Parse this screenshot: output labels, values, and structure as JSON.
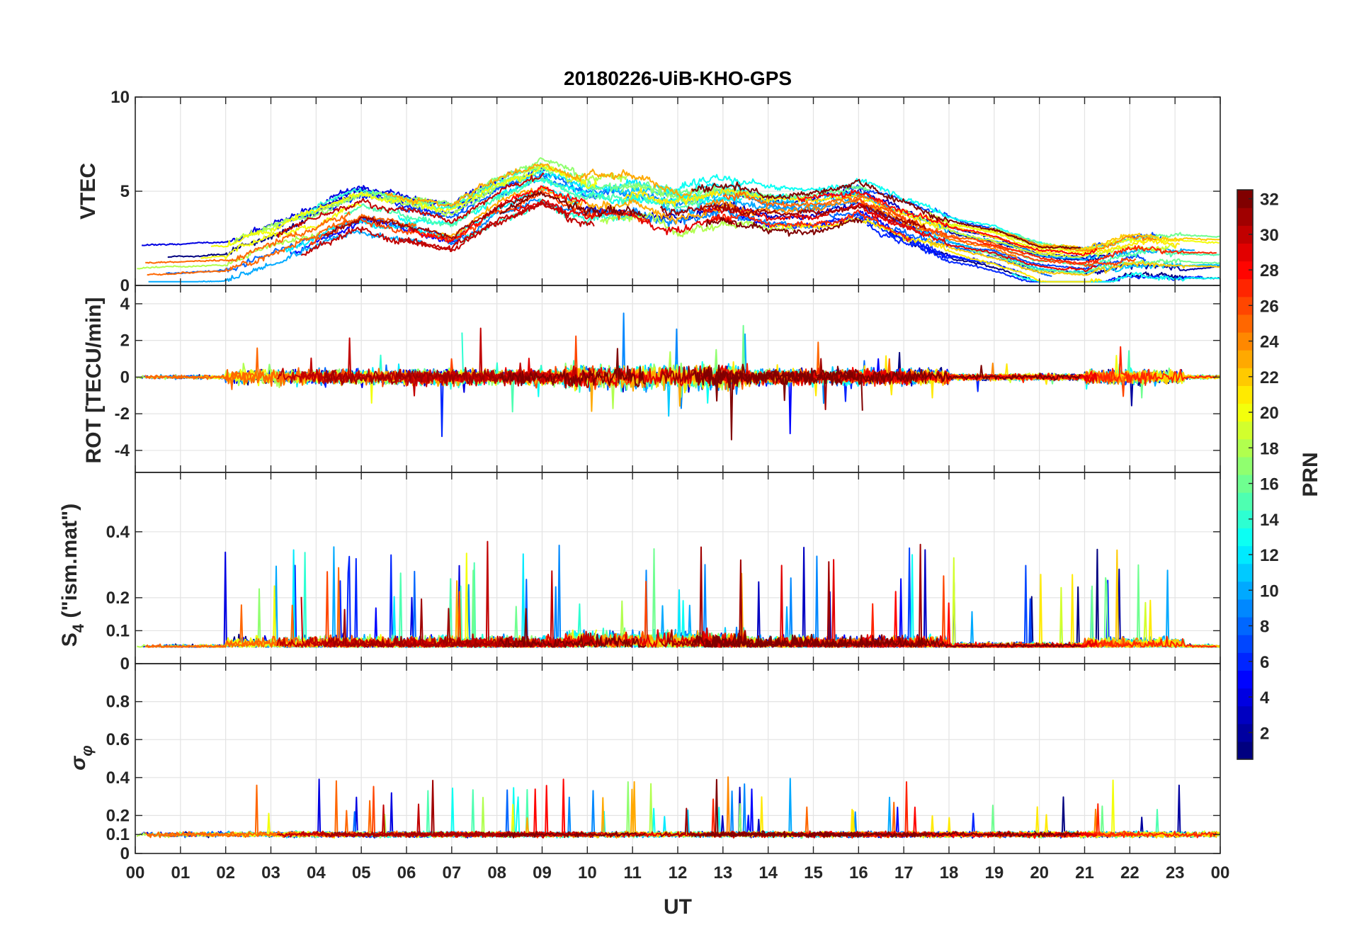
{
  "chart_data": {
    "type": "line",
    "title": "20180226-UiB-KHO-GPS",
    "xlabel": "UT",
    "x_range": [
      0,
      24
    ],
    "x_ticks": [
      "00",
      "01",
      "02",
      "03",
      "04",
      "05",
      "06",
      "07",
      "08",
      "09",
      "10",
      "11",
      "12",
      "13",
      "14",
      "15",
      "16",
      "17",
      "18",
      "19",
      "20",
      "21",
      "22",
      "23",
      "00"
    ],
    "panels": [
      {
        "id": "vtec",
        "ylabel": "VTEC",
        "ylim": [
          0,
          10
        ],
        "y_ticks": [
          0,
          5,
          10
        ],
        "y_tick_labels": [
          "0",
          "5",
          "10"
        ],
        "description_points": [
          [
            0,
            1.0
          ],
          [
            2,
            1.2
          ],
          [
            4,
            3.0
          ],
          [
            5,
            4.0
          ],
          [
            6,
            3.5
          ],
          [
            7,
            3.0
          ],
          [
            8,
            4.5
          ],
          [
            9,
            5.5
          ],
          [
            10,
            4.5
          ],
          [
            11,
            4.5
          ],
          [
            12,
            4.0
          ],
          [
            13,
            4.5
          ],
          [
            14,
            4.0
          ],
          [
            15,
            4.0
          ],
          [
            16,
            4.5
          ],
          [
            17,
            3.5
          ],
          [
            18,
            2.5
          ],
          [
            19,
            2.0
          ],
          [
            20,
            1.2
          ],
          [
            21,
            1.0
          ],
          [
            22,
            1.5
          ],
          [
            23,
            1.5
          ],
          [
            24,
            1.5
          ]
        ],
        "grid": true
      },
      {
        "id": "rot",
        "ylabel": "ROT [TECU/min]",
        "ylim": [
          -5.2,
          5.0
        ],
        "y_ticks": [
          -4,
          -2,
          0,
          2,
          4
        ],
        "y_tick_labels": [
          "-4",
          "-2",
          "0",
          "2",
          "4"
        ],
        "grid": true
      },
      {
        "id": "s4",
        "ylabel_main": "S",
        "ylabel_sub": "4",
        "ylabel_rest": " (\"ism.mat\")",
        "ylim": [
          0,
          0.58
        ],
        "y_ticks": [
          0,
          0.1,
          0.2,
          0.4
        ],
        "y_tick_labels": [
          "0",
          "0.1",
          "0.2",
          "0.4"
        ],
        "grid": true
      },
      {
        "id": "sigma",
        "ylabel_main": "σ",
        "ylabel_sub": "φ",
        "ylim": [
          0,
          1.0
        ],
        "y_ticks": [
          0,
          0.1,
          0.2,
          0.4,
          0.6,
          0.8
        ],
        "y_tick_labels": [
          "0",
          "0.1",
          "0.2",
          "0.4",
          "0.6",
          "0.8"
        ],
        "grid": true
      }
    ],
    "colorbar": {
      "label": "PRN",
      "range": [
        1,
        32
      ],
      "ticks": [
        "2",
        "4",
        "6",
        "8",
        "10",
        "12",
        "14",
        "16",
        "18",
        "20",
        "22",
        "24",
        "26",
        "28",
        "30",
        "32"
      ],
      "tick_values": [
        2,
        4,
        6,
        8,
        10,
        12,
        14,
        16,
        18,
        20,
        22,
        24,
        26,
        28,
        30,
        32
      ],
      "colormap": "jet"
    },
    "series_count": 32
  }
}
